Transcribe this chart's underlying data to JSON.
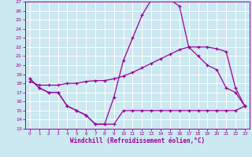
{
  "xlabel": "Windchill (Refroidissement éolien,°C)",
  "xlim": [
    -0.5,
    23.5
  ],
  "ylim": [
    13,
    27
  ],
  "xticks": [
    0,
    1,
    2,
    3,
    4,
    5,
    6,
    7,
    8,
    9,
    10,
    11,
    12,
    13,
    14,
    15,
    16,
    17,
    18,
    19,
    20,
    21,
    22,
    23
  ],
  "yticks": [
    13,
    14,
    15,
    16,
    17,
    18,
    19,
    20,
    21,
    22,
    23,
    24,
    25,
    26,
    27
  ],
  "bg_color": "#cce8f0",
  "line_color": "#990099",
  "grid_color": "#ffffff",
  "line1_x": [
    0,
    1,
    2,
    3,
    4,
    5,
    6,
    7,
    8,
    9,
    10,
    11,
    12,
    13,
    14,
    15,
    16,
    17,
    18,
    19,
    20,
    21,
    22,
    23
  ],
  "line1_y": [
    18.5,
    17.5,
    17.0,
    17.0,
    15.5,
    15.0,
    14.5,
    13.5,
    13.5,
    13.5,
    15.0,
    15.0,
    15.0,
    15.0,
    15.0,
    15.0,
    15.0,
    15.0,
    15.0,
    15.0,
    15.0,
    15.0,
    15.0,
    15.5
  ],
  "line2_x": [
    0,
    1,
    2,
    3,
    4,
    5,
    6,
    7,
    8,
    9,
    10,
    11,
    12,
    13,
    14,
    15,
    16,
    17,
    18,
    19,
    20,
    21,
    22,
    23
  ],
  "line2_y": [
    18.5,
    17.5,
    17.0,
    17.0,
    15.5,
    15.0,
    14.5,
    13.5,
    13.5,
    16.5,
    20.5,
    23.0,
    25.5,
    27.2,
    27.5,
    27.2,
    26.5,
    22.0,
    21.0,
    20.0,
    19.5,
    17.5,
    17.0,
    15.5
  ],
  "line3_x": [
    0,
    1,
    2,
    3,
    4,
    5,
    6,
    7,
    8,
    9,
    10,
    11,
    12,
    13,
    14,
    15,
    16,
    17,
    18,
    19,
    20,
    21,
    22,
    23
  ],
  "line3_y": [
    18.2,
    17.8,
    17.8,
    17.8,
    18.0,
    18.0,
    18.2,
    18.3,
    18.3,
    18.5,
    18.8,
    19.2,
    19.7,
    20.2,
    20.7,
    21.2,
    21.7,
    22.0,
    22.0,
    22.0,
    21.8,
    21.5,
    17.5,
    15.5
  ]
}
